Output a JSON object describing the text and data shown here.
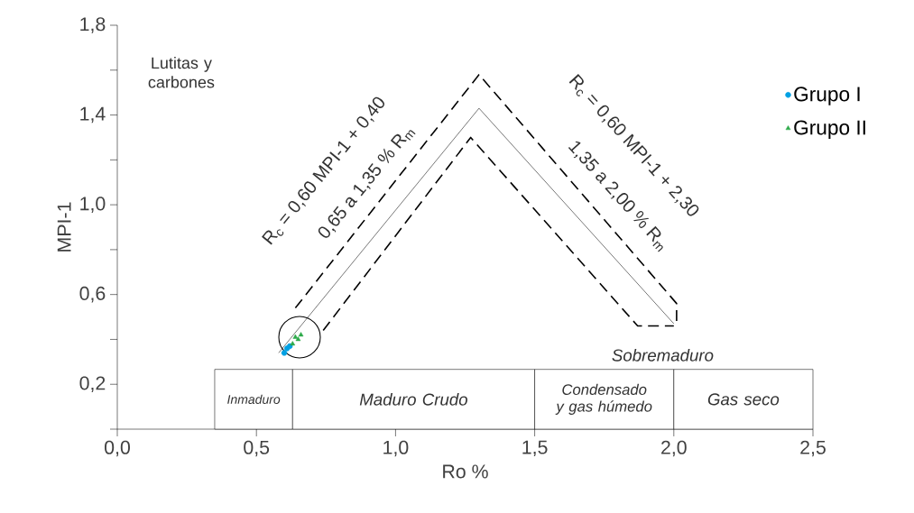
{
  "chart_data": {
    "type": "scatter",
    "xlabel": "Ro %",
    "ylabel": "MPI-1",
    "xlim": [
      0,
      2.5
    ],
    "ylim": [
      0,
      1.8
    ],
    "xticks": [
      {
        "value": 0,
        "label": "0,0"
      },
      {
        "value": 0.5,
        "label": "0,5"
      },
      {
        "value": 1.0,
        "label": "1,0"
      },
      {
        "value": 1.5,
        "label": "1,5"
      },
      {
        "value": 2.0,
        "label": "2,0"
      },
      {
        "value": 2.5,
        "label": "2,5"
      }
    ],
    "yticks": [
      {
        "value": 0,
        "label": null
      },
      {
        "value": 0.2,
        "label": "0,2"
      },
      {
        "value": 0.4,
        "label": null
      },
      {
        "value": 0.6,
        "label": "0,6"
      },
      {
        "value": 0.8,
        "label": null
      },
      {
        "value": 1.0,
        "label": "1,0"
      },
      {
        "value": 1.2,
        "label": null
      },
      {
        "value": 1.4,
        "label": "1,4"
      },
      {
        "value": 1.6,
        "label": null
      },
      {
        "value": 1.8,
        "label": "1,8"
      }
    ],
    "legend": "right",
    "grid": false,
    "series": [
      {
        "name": "Grupo I",
        "marker": "circle",
        "color": "#00a0e3",
        "x": [
          0.6,
          0.61,
          0.62
        ],
        "values": [
          0.34,
          0.36,
          0.37
        ]
      },
      {
        "name": "Grupo II",
        "marker": "triangle",
        "color": "#2eaa4a",
        "x": [
          0.63,
          0.64,
          0.65,
          0.66
        ],
        "values": [
          0.38,
          0.41,
          0.4,
          0.42
        ]
      },
      {
        "type": "line",
        "line_style": "solid",
        "marker": "none",
        "color": "#000000",
        "x": [
          0.58,
          1.3,
          2.0
        ],
        "values": [
          0.34,
          1.43,
          0.47
        ]
      },
      {
        "type": "line",
        "line_style": "dashed",
        "marker": "none",
        "color": "#000000",
        "x": [
          0.64,
          1.3,
          2.01,
          2.01
        ],
        "values": [
          0.54,
          1.58,
          0.56,
          0.46
        ]
      },
      {
        "type": "line",
        "line_style": "dashed",
        "marker": "none",
        "color": "#000000",
        "x": [
          0.74,
          1.27,
          1.87,
          2.0
        ],
        "values": [
          0.44,
          1.3,
          0.46,
          0.46
        ]
      }
    ],
    "bands": [
      {
        "axis": "x",
        "from": 0.35,
        "to": 0.63,
        "label": "Inmaduro",
        "color": "#ffffff"
      },
      {
        "axis": "x",
        "from": 0.63,
        "to": 1.5,
        "label": "Maduro Crudo",
        "color": "#ffffff"
      },
      {
        "axis": "x",
        "from": 1.5,
        "to": 2.0,
        "label": "Condensado y gas húmedo",
        "color": "#ffffff"
      },
      {
        "axis": "x",
        "from": 2.0,
        "to": 2.5,
        "label": "Gas seco",
        "color": "#ffffff"
      }
    ],
    "annotations": [
      "Lutitas y carbones",
      "R$_{c}$ = 0,60 MPI-1 + 0,40",
      "0,65 a 1,35 % R$_{m}$",
      "R$_{c}$ = 0,60 MPI-1 + 2,30",
      "1,35 a 2,00 % R$_{m}$",
      "*Sobremaduro*"
    ]
  }
}
